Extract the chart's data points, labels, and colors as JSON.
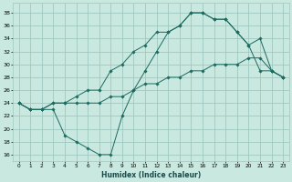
{
  "xlabel": "Humidex (Indice chaleur)",
  "bg_color": "#c8e8e0",
  "grid_color": "#a0c8c0",
  "line_color": "#1a6b60",
  "xlim": [
    -0.5,
    23.5
  ],
  "ylim": [
    15.0,
    39.5
  ],
  "xticks": [
    0,
    1,
    2,
    3,
    4,
    5,
    6,
    7,
    8,
    9,
    10,
    11,
    12,
    13,
    14,
    15,
    16,
    17,
    18,
    19,
    20,
    21,
    22,
    23
  ],
  "yticks": [
    16,
    18,
    20,
    22,
    24,
    26,
    28,
    30,
    32,
    34,
    36,
    38
  ],
  "line1_x": [
    0,
    1,
    2,
    3,
    4,
    5,
    6,
    7,
    8,
    9,
    10,
    11,
    12,
    13,
    14,
    15,
    16,
    17,
    18,
    19,
    20,
    21,
    22,
    23
  ],
  "line1_y": [
    24,
    23,
    23,
    24,
    24,
    24,
    24,
    24,
    25,
    25,
    26,
    27,
    27,
    28,
    28,
    29,
    29,
    30,
    30,
    30,
    31,
    31,
    29,
    28
  ],
  "line2_x": [
    0,
    1,
    2,
    3,
    4,
    5,
    6,
    7,
    8,
    9,
    10,
    11,
    12,
    13,
    14,
    15,
    16,
    17,
    18,
    19,
    20,
    21,
    22,
    23
  ],
  "line2_y": [
    24,
    23,
    23,
    23,
    19,
    18,
    17,
    16,
    16,
    22,
    26,
    29,
    32,
    35,
    36,
    38,
    38,
    37,
    37,
    35,
    33,
    29,
    29,
    28
  ],
  "line3_x": [
    0,
    1,
    2,
    3,
    4,
    5,
    6,
    7,
    8,
    9,
    10,
    11,
    12,
    13,
    14,
    15,
    16,
    17,
    18,
    19,
    20,
    21,
    22,
    23
  ],
  "line3_y": [
    24,
    23,
    23,
    24,
    24,
    25,
    26,
    26,
    29,
    30,
    32,
    33,
    35,
    35,
    36,
    38,
    38,
    37,
    37,
    35,
    33,
    34,
    29,
    28
  ]
}
